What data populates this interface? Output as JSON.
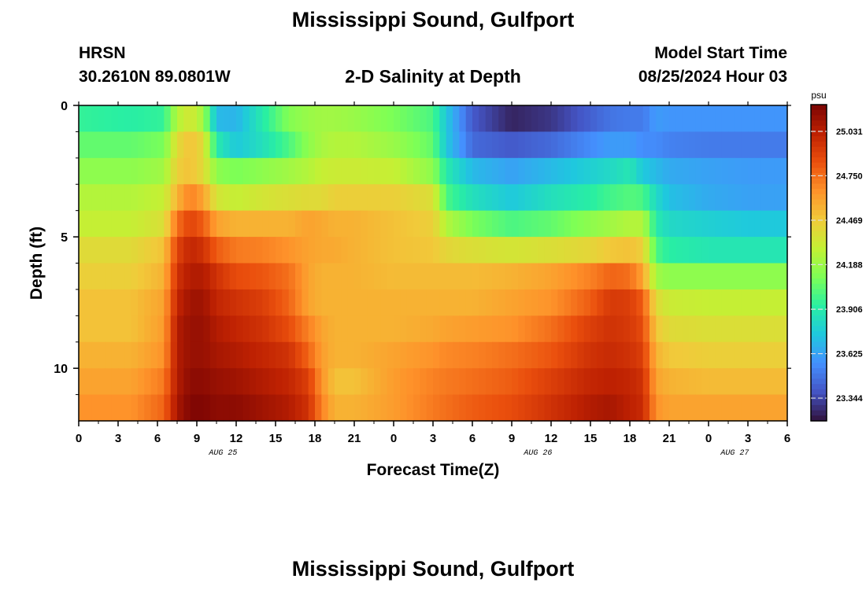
{
  "header": {
    "title": "Mississippi Sound, Gulfport",
    "station": "HRSN",
    "coords": "30.2610N  89.0801W",
    "subtitle": "2-D Salinity at Depth",
    "model_label": "Model Start Time",
    "model_time": "08/25/2024 Hour 03",
    "footer_title": "Mississippi Sound, Gulfport"
  },
  "chart_data": {
    "type": "heatmap",
    "title": "2-D Salinity at Depth",
    "xlabel": "Forecast Time(Z)",
    "ylabel": "Depth (ft)",
    "x_hours": [
      0,
      54
    ],
    "x_tick_labels": [
      "0",
      "3",
      "6",
      "9",
      "12",
      "15",
      "18",
      "21",
      "0",
      "3",
      "6",
      "9",
      "12",
      "15",
      "18",
      "21",
      "0",
      "3",
      "6"
    ],
    "date_labels": [
      {
        "hour": 11,
        "label": "AUG 25"
      },
      {
        "hour": 35,
        "label": "AUG 26"
      },
      {
        "hour": 50,
        "label": "AUG 27"
      }
    ],
    "y_range": [
      0,
      12
    ],
    "y_ticks": [
      0,
      5,
      10
    ],
    "depth_levels": [
      0.5,
      1.5,
      2.5,
      3.5,
      4.5,
      5.5,
      6.5,
      7.5,
      8.5,
      9.5,
      10.5,
      11.5
    ],
    "colorbar": {
      "unit": "psu",
      "min": 23.2,
      "max": 25.2,
      "tick_labels": [
        "25.031",
        "24.750",
        "24.469",
        "24.188",
        "23.906",
        "23.625",
        "23.344"
      ]
    },
    "colors": {
      "scale": [
        "#30123b",
        "#4454c4",
        "#4490fe",
        "#1fc8de",
        "#29efa2",
        "#7eff55",
        "#c3f134",
        "#f1ca3a",
        "#fe922a",
        "#ea4f0d",
        "#be2102",
        "#7a0403"
      ]
    },
    "salinity_keyframes": {
      "hours": [
        0,
        4,
        6.5,
        7.5,
        8.5,
        9.5,
        10.5,
        12,
        14,
        16,
        17.5,
        18.5,
        19.5,
        21,
        24,
        27,
        28,
        30,
        33,
        36,
        39,
        40.5,
        42,
        43,
        44,
        45,
        48,
        51,
        54
      ],
      "depth_rows": [
        [
          23.95,
          23.92,
          23.95,
          24.25,
          24.35,
          24.2,
          23.7,
          23.68,
          23.9,
          24.12,
          24.18,
          24.2,
          24.2,
          24.18,
          24.1,
          24.0,
          23.75,
          23.4,
          23.25,
          23.3,
          23.42,
          23.48,
          23.5,
          23.5,
          23.6,
          23.58,
          23.58,
          23.58,
          23.58
        ],
        [
          24.05,
          24.05,
          24.1,
          24.4,
          24.5,
          24.4,
          23.9,
          23.75,
          23.85,
          24.0,
          24.15,
          24.22,
          24.25,
          24.25,
          24.18,
          24.05,
          23.75,
          23.45,
          23.4,
          23.45,
          23.55,
          23.6,
          23.6,
          23.55,
          23.55,
          23.52,
          23.5,
          23.5,
          23.5
        ],
        [
          24.15,
          24.15,
          24.2,
          24.45,
          24.5,
          24.4,
          24.15,
          24.1,
          24.15,
          24.2,
          24.25,
          24.3,
          24.32,
          24.32,
          24.3,
          24.15,
          23.9,
          23.7,
          23.62,
          23.7,
          23.78,
          23.82,
          23.88,
          23.75,
          23.7,
          23.65,
          23.62,
          23.6,
          23.6
        ],
        [
          24.25,
          24.25,
          24.3,
          24.55,
          24.7,
          24.6,
          24.35,
          24.3,
          24.35,
          24.38,
          24.4,
          24.4,
          24.45,
          24.45,
          24.45,
          24.38,
          24.0,
          23.85,
          23.75,
          23.85,
          23.92,
          23.98,
          24.02,
          24.0,
          23.82,
          23.72,
          23.65,
          23.62,
          23.62
        ],
        [
          24.3,
          24.3,
          24.38,
          24.75,
          24.88,
          24.8,
          24.6,
          24.55,
          24.55,
          24.55,
          24.6,
          24.58,
          24.55,
          24.55,
          24.5,
          24.45,
          24.25,
          24.1,
          24.0,
          24.05,
          24.15,
          24.2,
          24.25,
          24.25,
          23.9,
          23.82,
          23.78,
          23.75,
          23.75
        ],
        [
          24.4,
          24.4,
          24.5,
          24.88,
          25.0,
          24.95,
          24.8,
          24.72,
          24.7,
          24.65,
          24.6,
          24.58,
          24.58,
          24.55,
          24.5,
          24.48,
          24.42,
          24.38,
          24.35,
          24.38,
          24.42,
          24.48,
          24.5,
          24.45,
          24.0,
          23.92,
          23.88,
          23.88,
          23.88
        ],
        [
          24.45,
          24.45,
          24.55,
          24.95,
          25.05,
          25.05,
          24.95,
          24.85,
          24.82,
          24.75,
          24.6,
          24.55,
          24.55,
          24.55,
          24.52,
          24.52,
          24.52,
          24.52,
          24.55,
          24.6,
          24.7,
          24.78,
          24.75,
          24.6,
          24.2,
          24.15,
          24.15,
          24.15,
          24.15
        ],
        [
          24.5,
          24.5,
          24.6,
          25.0,
          25.1,
          25.1,
          25.0,
          24.95,
          24.9,
          24.78,
          24.6,
          24.55,
          24.55,
          24.55,
          24.55,
          24.55,
          24.55,
          24.55,
          24.6,
          24.65,
          24.8,
          24.92,
          24.9,
          24.8,
          24.4,
          24.32,
          24.3,
          24.3,
          24.3
        ],
        [
          24.5,
          24.5,
          24.62,
          25.05,
          25.12,
          25.12,
          25.05,
          25.0,
          24.95,
          24.85,
          24.7,
          24.6,
          24.55,
          24.55,
          24.55,
          24.58,
          24.6,
          24.62,
          24.65,
          24.75,
          24.9,
          24.95,
          24.92,
          24.85,
          24.48,
          24.4,
          24.38,
          24.38,
          24.38
        ],
        [
          24.55,
          24.55,
          24.65,
          25.05,
          25.12,
          25.12,
          25.08,
          25.05,
          25.0,
          24.95,
          24.78,
          24.62,
          24.55,
          24.55,
          24.6,
          24.65,
          24.68,
          24.7,
          24.75,
          24.82,
          24.95,
          24.98,
          24.95,
          24.9,
          24.55,
          24.48,
          24.45,
          24.45,
          24.45
        ],
        [
          24.6,
          24.6,
          24.72,
          25.05,
          25.15,
          25.15,
          25.12,
          25.1,
          25.05,
          25.0,
          24.9,
          24.65,
          24.5,
          24.5,
          24.62,
          24.7,
          24.72,
          24.75,
          24.8,
          24.9,
          25.0,
          25.02,
          25.0,
          24.95,
          24.6,
          24.55,
          24.52,
          24.52,
          24.52
        ],
        [
          24.65,
          24.65,
          24.78,
          25.08,
          25.18,
          25.18,
          25.15,
          25.15,
          25.1,
          25.05,
          24.95,
          24.7,
          24.55,
          24.55,
          24.62,
          24.72,
          24.75,
          24.8,
          24.85,
          24.95,
          25.05,
          25.08,
          25.02,
          24.98,
          24.65,
          24.6,
          24.6,
          24.6,
          24.6
        ]
      ]
    }
  }
}
